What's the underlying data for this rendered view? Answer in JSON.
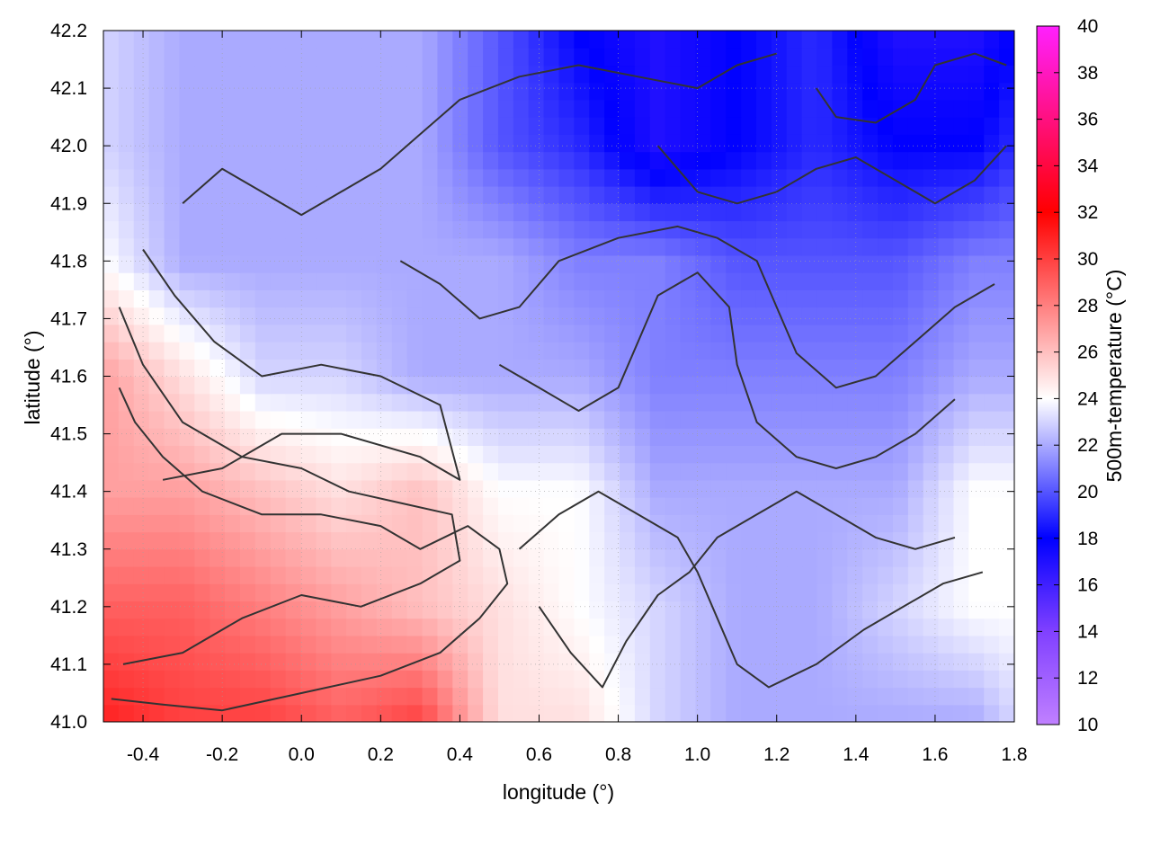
{
  "chart_data": {
    "type": "heatmap",
    "title": "",
    "xlabel": "longitude (°)",
    "ylabel": "latitude (°)",
    "colorbar_label": "500m-temperature (°C)",
    "xlim": [
      -0.5,
      1.8
    ],
    "ylim": [
      41.0,
      42.2
    ],
    "clim": [
      10,
      40
    ],
    "x_ticks": [
      -0.4,
      -0.2,
      0.0,
      0.2,
      0.4,
      0.6,
      0.8,
      1.0,
      1.2,
      1.4,
      1.6,
      1.8
    ],
    "x_tick_labels": [
      "-0.4",
      "-0.2",
      "0.0",
      "0.2",
      "0.4",
      "0.6",
      "0.8",
      "1.0",
      "1.2",
      "1.4",
      "1.6",
      "1.8"
    ],
    "y_ticks": [
      41.0,
      41.1,
      41.2,
      41.3,
      41.4,
      41.5,
      41.6,
      41.7,
      41.8,
      41.9,
      42.0,
      42.1,
      42.2
    ],
    "y_tick_labels": [
      "41.0",
      "41.1",
      "41.2",
      "41.3",
      "41.4",
      "41.5",
      "41.6",
      "41.7",
      "41.8",
      "41.9",
      "42.0",
      "42.1",
      "42.2"
    ],
    "colorbar_ticks": [
      10,
      12,
      14,
      16,
      18,
      20,
      22,
      24,
      26,
      28,
      30,
      32,
      34,
      36,
      38,
      40
    ],
    "colorbar_tick_labels": [
      "10",
      "12",
      "14",
      "16",
      "18",
      "20",
      "22",
      "24",
      "26",
      "28",
      "30",
      "32",
      "34",
      "36",
      "38",
      "40"
    ],
    "colormap": [
      {
        "value": 10,
        "color": "#c080ff"
      },
      {
        "value": 14,
        "color": "#8040ff"
      },
      {
        "value": 18,
        "color": "#0000ff"
      },
      {
        "value": 24,
        "color": "#ffffff"
      },
      {
        "value": 32,
        "color": "#ff0000"
      },
      {
        "value": 36,
        "color": "#ff1080"
      },
      {
        "value": 40,
        "color": "#ff20ff"
      }
    ],
    "grid": true,
    "contour_color": "#333333",
    "temperature_field": {
      "x": [
        -0.5,
        -0.3,
        -0.1,
        0.1,
        0.3,
        0.5,
        0.7,
        0.9,
        1.1,
        1.3,
        1.5,
        1.7,
        1.8
      ],
      "y": [
        41.0,
        41.2,
        41.4,
        41.6,
        41.8,
        42.0,
        42.2
      ],
      "values": [
        [
          31,
          30,
          30,
          29,
          30,
          25,
          25,
          23,
          22,
          22,
          22,
          22,
          23
        ],
        [
          29,
          29,
          28,
          27,
          26,
          25,
          24,
          23,
          22,
          22,
          23,
          24,
          24
        ],
        [
          27,
          27,
          26,
          25,
          26,
          24,
          24,
          22,
          22,
          22,
          22,
          24,
          24
        ],
        [
          27,
          25,
          23,
          23,
          22,
          22,
          22,
          21,
          21,
          21,
          21,
          22,
          22
        ],
        [
          24,
          22,
          22,
          22,
          22,
          22,
          21,
          21,
          20,
          20,
          20,
          21,
          21
        ],
        [
          23,
          22,
          22,
          22,
          22,
          20,
          19,
          17,
          18,
          19,
          18,
          18,
          19
        ],
        [
          23,
          22,
          22,
          22,
          22,
          20,
          18,
          17,
          18,
          19,
          17,
          17,
          18
        ]
      ]
    },
    "contours": [
      [
        [
          -0.48,
          41.04
        ],
        [
          -0.35,
          41.03
        ],
        [
          -0.2,
          41.02
        ],
        [
          0.0,
          41.05
        ],
        [
          0.2,
          41.08
        ],
        [
          0.35,
          41.12
        ],
        [
          0.45,
          41.18
        ],
        [
          0.52,
          41.24
        ],
        [
          0.5,
          41.3
        ],
        [
          0.42,
          41.34
        ],
        [
          0.3,
          41.3
        ],
        [
          0.2,
          41.34
        ],
        [
          0.05,
          41.36
        ],
        [
          -0.1,
          41.36
        ],
        [
          -0.25,
          41.4
        ],
        [
          -0.35,
          41.46
        ],
        [
          -0.42,
          41.52
        ],
        [
          -0.46,
          41.58
        ]
      ],
      [
        [
          -0.45,
          41.1
        ],
        [
          -0.3,
          41.12
        ],
        [
          -0.15,
          41.18
        ],
        [
          0.0,
          41.22
        ],
        [
          0.15,
          41.2
        ],
        [
          0.3,
          41.24
        ],
        [
          0.4,
          41.28
        ],
        [
          0.38,
          41.36
        ],
        [
          0.25,
          41.38
        ],
        [
          0.12,
          41.4
        ],
        [
          0.0,
          41.44
        ],
        [
          -0.15,
          41.46
        ],
        [
          -0.3,
          41.52
        ],
        [
          -0.4,
          41.62
        ],
        [
          -0.46,
          41.72
        ]
      ],
      [
        [
          -0.35,
          41.42
        ],
        [
          -0.2,
          41.44
        ],
        [
          -0.05,
          41.5
        ],
        [
          0.1,
          41.5
        ],
        [
          0.3,
          41.46
        ],
        [
          0.4,
          41.42
        ],
        [
          0.35,
          41.55
        ],
        [
          0.2,
          41.6
        ],
        [
          0.05,
          41.62
        ],
        [
          -0.1,
          41.6
        ],
        [
          -0.22,
          41.66
        ],
        [
          -0.32,
          41.74
        ],
        [
          -0.4,
          41.82
        ]
      ],
      [
        [
          -0.3,
          41.9
        ],
        [
          -0.2,
          41.96
        ],
        [
          -0.1,
          41.92
        ],
        [
          0.0,
          41.88
        ],
        [
          0.1,
          41.92
        ],
        [
          0.2,
          41.96
        ],
        [
          0.3,
          42.02
        ],
        [
          0.4,
          42.08
        ],
        [
          0.55,
          42.12
        ],
        [
          0.7,
          42.14
        ],
        [
          0.85,
          42.12
        ],
        [
          1.0,
          42.1
        ],
        [
          1.1,
          42.14
        ],
        [
          1.2,
          42.16
        ]
      ],
      [
        [
          0.25,
          41.8
        ],
        [
          0.35,
          41.76
        ],
        [
          0.45,
          41.7
        ],
        [
          0.55,
          41.72
        ],
        [
          0.65,
          41.8
        ],
        [
          0.8,
          41.84
        ],
        [
          0.95,
          41.86
        ],
        [
          1.05,
          41.84
        ],
        [
          1.15,
          41.8
        ],
        [
          1.2,
          41.72
        ],
        [
          1.25,
          41.64
        ],
        [
          1.35,
          41.58
        ],
        [
          1.45,
          41.6
        ],
        [
          1.55,
          41.66
        ],
        [
          1.65,
          41.72
        ],
        [
          1.75,
          41.76
        ]
      ],
      [
        [
          0.5,
          41.62
        ],
        [
          0.6,
          41.58
        ],
        [
          0.7,
          41.54
        ],
        [
          0.8,
          41.58
        ],
        [
          0.85,
          41.66
        ],
        [
          0.9,
          41.74
        ],
        [
          1.0,
          41.78
        ],
        [
          1.08,
          41.72
        ],
        [
          1.1,
          41.62
        ],
        [
          1.15,
          41.52
        ],
        [
          1.25,
          41.46
        ],
        [
          1.35,
          41.44
        ],
        [
          1.45,
          41.46
        ],
        [
          1.55,
          41.5
        ],
        [
          1.65,
          41.56
        ]
      ],
      [
        [
          0.55,
          41.3
        ],
        [
          0.65,
          41.36
        ],
        [
          0.75,
          41.4
        ],
        [
          0.85,
          41.36
        ],
        [
          0.95,
          41.32
        ],
        [
          1.0,
          41.26
        ],
        [
          1.05,
          41.18
        ],
        [
          1.1,
          41.1
        ],
        [
          1.18,
          41.06
        ],
        [
          1.3,
          41.1
        ],
        [
          1.42,
          41.16
        ],
        [
          1.52,
          41.2
        ],
        [
          1.62,
          41.24
        ],
        [
          1.72,
          41.26
        ]
      ],
      [
        [
          0.6,
          41.2
        ],
        [
          0.68,
          41.12
        ],
        [
          0.76,
          41.06
        ],
        [
          0.82,
          41.14
        ],
        [
          0.9,
          41.22
        ],
        [
          0.98,
          41.26
        ],
        [
          1.05,
          41.32
        ],
        [
          1.15,
          41.36
        ],
        [
          1.25,
          41.4
        ],
        [
          1.35,
          41.36
        ],
        [
          1.45,
          41.32
        ],
        [
          1.55,
          41.3
        ],
        [
          1.65,
          41.32
        ]
      ],
      [
        [
          0.9,
          42.0
        ],
        [
          0.95,
          41.96
        ],
        [
          1.0,
          41.92
        ],
        [
          1.1,
          41.9
        ],
        [
          1.2,
          41.92
        ],
        [
          1.3,
          41.96
        ],
        [
          1.4,
          41.98
        ],
        [
          1.5,
          41.94
        ],
        [
          1.6,
          41.9
        ],
        [
          1.7,
          41.94
        ],
        [
          1.78,
          42.0
        ]
      ],
      [
        [
          1.3,
          42.1
        ],
        [
          1.35,
          42.05
        ],
        [
          1.45,
          42.04
        ],
        [
          1.55,
          42.08
        ],
        [
          1.6,
          42.14
        ],
        [
          1.7,
          42.16
        ],
        [
          1.78,
          42.14
        ]
      ]
    ]
  }
}
